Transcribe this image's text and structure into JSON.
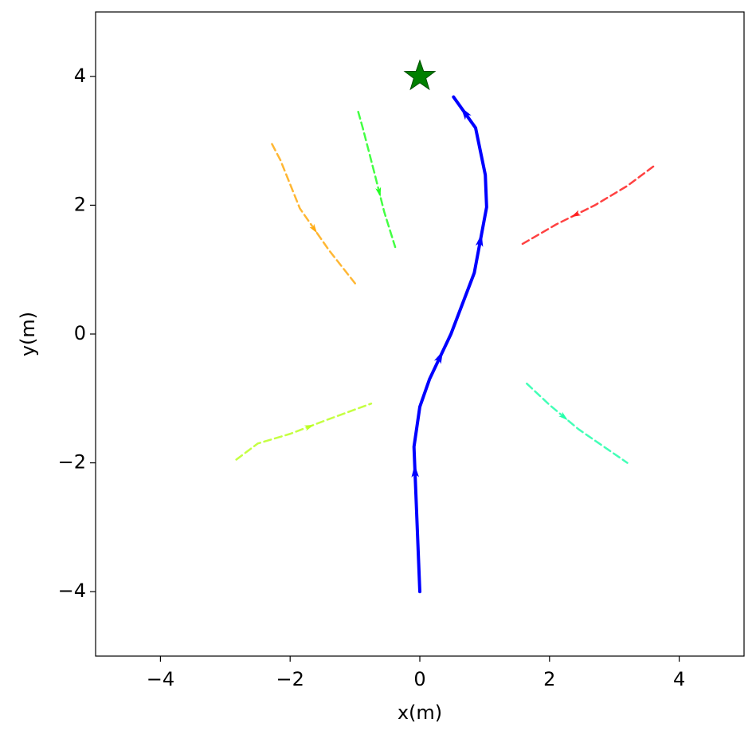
{
  "chart_data": {
    "type": "trajectory",
    "xlabel": "x(m)",
    "ylabel": "y(m)",
    "xlim": [
      -5,
      5
    ],
    "ylim": [
      -5,
      5
    ],
    "xticks": [
      {
        "value": -4,
        "label": "−4"
      },
      {
        "value": -2,
        "label": "−2"
      },
      0,
      2,
      4
    ],
    "yticks": [
      {
        "value": -4,
        "label": "−4"
      },
      {
        "value": -2,
        "label": "−2"
      },
      0,
      2,
      4
    ],
    "series": [
      {
        "color": "#0000ff",
        "style": "solid",
        "x": [
          0,
          -0.06,
          -0.09,
          0,
          0.15,
          0.48,
          0.84,
          1.03,
          1.01,
          0.86,
          0.52
        ],
        "y": [
          -4,
          -2.5,
          -1.75,
          -1.13,
          -0.7,
          0,
          0.95,
          1.97,
          2.47,
          3.2,
          3.68
        ]
      },
      {
        "color": "#ff2020",
        "style": "dashed",
        "x": [
          3.6,
          3.2,
          2.7,
          2.1,
          1.55
        ],
        "y": [
          2.6,
          2.3,
          2.0,
          1.7,
          1.38
        ]
      },
      {
        "color": "#22ff22",
        "style": "dashed",
        "x": [
          -0.95,
          -0.88,
          -0.7,
          -0.55,
          -0.38
        ],
        "y": [
          3.45,
          3.2,
          2.5,
          1.9,
          1.35
        ]
      },
      {
        "color": "#ffaa10",
        "style": "dashed",
        "x": [
          -2.28,
          -2.15,
          -1.85,
          -1.4,
          -0.97
        ],
        "y": [
          2.95,
          2.7,
          1.95,
          1.3,
          0.75
        ]
      },
      {
        "color": "#bbff22",
        "style": "dashed",
        "x": [
          -2.83,
          -2.5,
          -2.0,
          -1.4,
          -0.75
        ],
        "y": [
          -1.95,
          -1.7,
          -1.55,
          -1.32,
          -1.08
        ]
      },
      {
        "color": "#22ffaa",
        "style": "dashed",
        "x": [
          1.65,
          2.0,
          2.45,
          3.2
        ],
        "y": [
          -0.77,
          -1.1,
          -1.48,
          -2.0
        ]
      }
    ],
    "goal": {
      "x": 0,
      "y": 4,
      "color": "#008000",
      "marker": "star"
    }
  }
}
